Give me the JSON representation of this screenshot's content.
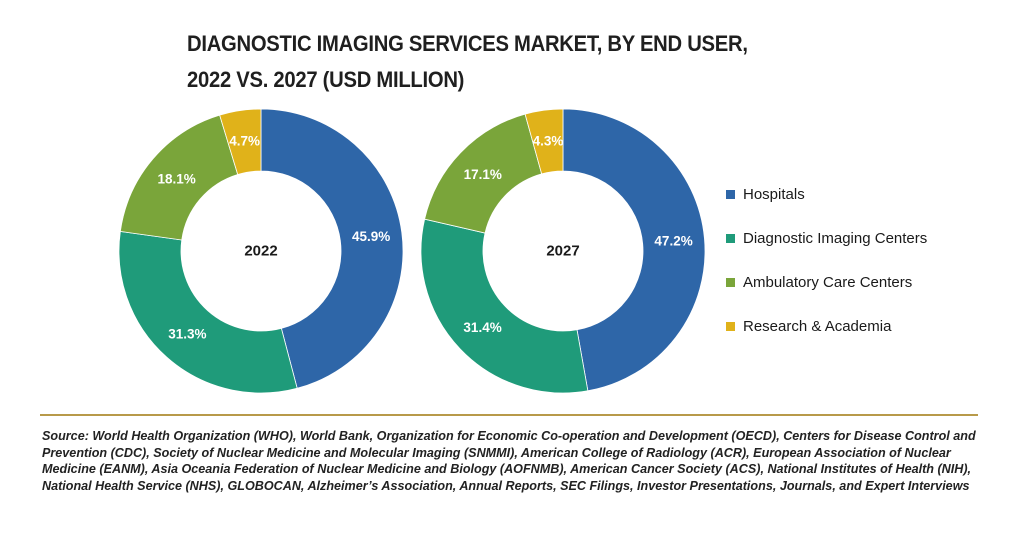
{
  "title": {
    "line1": "DIAGNOSTIC IMAGING SERVICES MARKET, BY END USER,",
    "line2": "2022 VS. 2027 (USD MILLION)"
  },
  "chart_data": {
    "type": "pie",
    "variant": "donut",
    "title": "DIAGNOSTIC IMAGING SERVICES MARKET, BY END USER, 2022 VS. 2027 (USD MILLION)",
    "categories": [
      "Hospitals",
      "Diagnostic Imaging Centers",
      "Ambulatory Care Centers",
      "Research & Academia"
    ],
    "colors": [
      "#2e66a8",
      "#1f9b7a",
      "#7aa53a",
      "#e0b21a"
    ],
    "legend_position": "right",
    "series": [
      {
        "name": "2022",
        "values": [
          45.9,
          31.3,
          18.1,
          4.7
        ],
        "labels": [
          "45.9%",
          "31.3%",
          "18.1%",
          "4.7%"
        ]
      },
      {
        "name": "2027",
        "values": [
          47.2,
          31.4,
          17.1,
          4.3
        ],
        "labels": [
          "47.2%",
          "31.4%",
          "17.1%",
          "4.3%"
        ]
      }
    ]
  },
  "source": "Source: World Health Organization (WHO), World Bank, Organization for Economic Co-operation and Development (OECD), Centers for Disease Control and Prevention (CDC), Society of Nuclear Medicine and Molecular Imaging (SNMMI), American College of Radiology (ACR), European Association of Nuclear Medicine (EANM), Asia Oceania Federation of Nuclear Medicine and Biology (AOFNMB), American Cancer Society (ACS), National Institutes of Health (NIH), National Health Service (NHS), GLOBOCAN, Alzheimer’s Association, Annual Reports, SEC Filings, Investor Presentations, Journals, and Expert Interviews",
  "divider_color": "#b89a4a"
}
